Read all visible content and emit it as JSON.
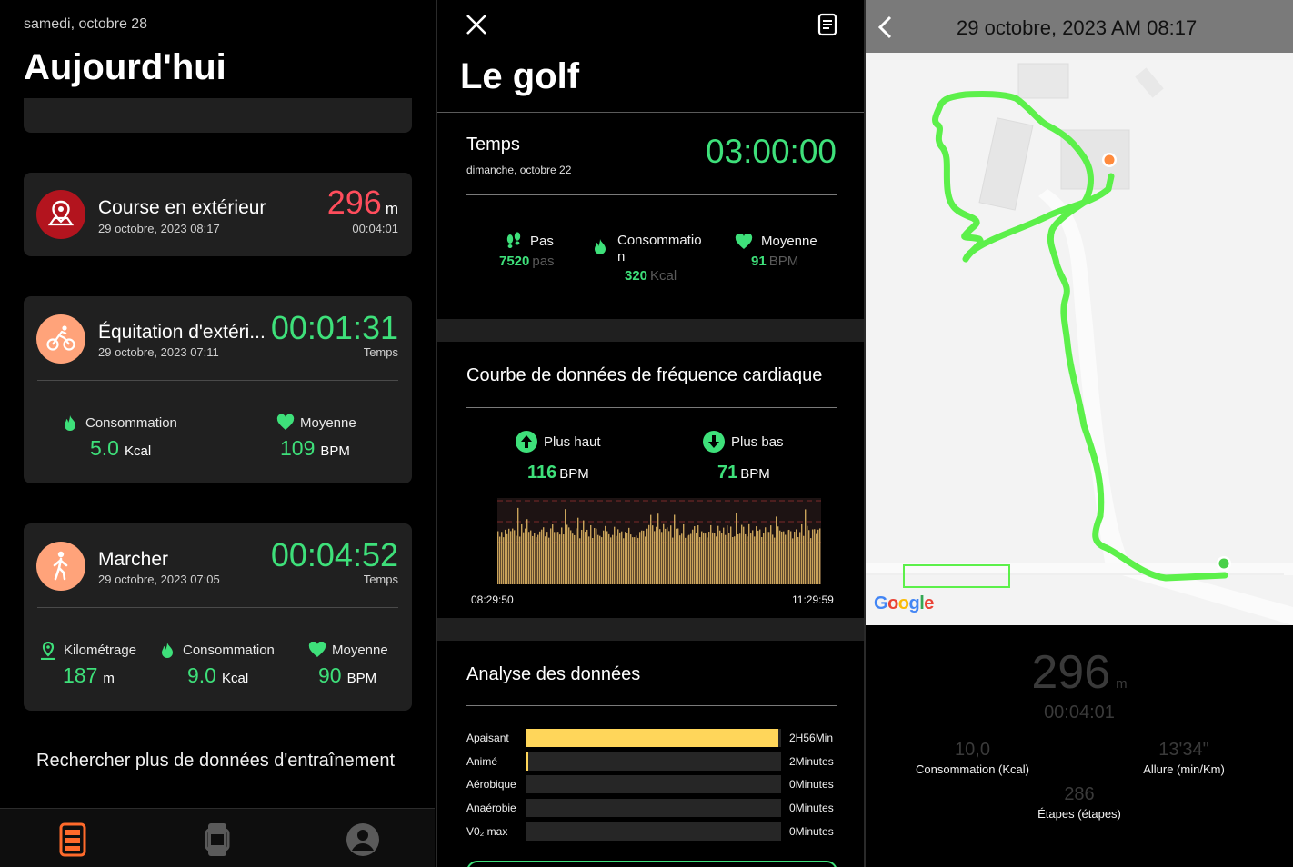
{
  "today": {
    "date": "samedi, octobre 28",
    "title": "Aujourd'hui",
    "cards": [
      {
        "name": "Course en extérieur",
        "date": "29 octobre, 2023 08:17",
        "value": "296",
        "unit": "m",
        "sub": "00:04:01",
        "icon": "map-pin-icon",
        "color": "#b3141e"
      },
      {
        "name": "Équitation d'extéri...",
        "date": "29 octobre, 2023 07:11",
        "value": "00:01:31",
        "sub": "Temps",
        "icon": "cycling-icon",
        "color": "#ffa37a",
        "stats": [
          {
            "label": "Consommation",
            "value": "5.0",
            "unit": "Kcal",
            "icon": "flame-icon"
          },
          {
            "label": "Moyenne",
            "value": "109",
            "unit": "BPM",
            "icon": "heart-icon"
          }
        ]
      },
      {
        "name": "Marcher",
        "date": "29 octobre, 2023 07:05",
        "value": "00:04:52",
        "sub": "Temps",
        "icon": "walking-icon",
        "color": "#ffa37a",
        "stats": [
          {
            "label": "Kilométrage",
            "value": "187",
            "unit": "m",
            "icon": "location-icon"
          },
          {
            "label": "Consommation",
            "value": "9.0",
            "unit": "Kcal",
            "icon": "flame-icon"
          },
          {
            "label": "Moyenne",
            "value": "90",
            "unit": "BPM",
            "icon": "heart-icon"
          }
        ]
      }
    ],
    "more_link": "Rechercher plus de données d'entraînement",
    "tabs": [
      "activity-tab-icon",
      "watch-tab-icon",
      "profile-tab-icon"
    ],
    "accent": "#ff6a2b"
  },
  "golf": {
    "title": "Le golf",
    "time_label": "Temps",
    "time_date": "dimanche, octobre 22",
    "time_value": "03:00:00",
    "metrics": {
      "steps_label": "Pas",
      "steps_value": "7520",
      "steps_unit": "pas",
      "cons_label_1": "Consommatio",
      "cons_label_2": "n",
      "cons_value": "320",
      "cons_unit": "Kcal",
      "avg_label": "Moyenne",
      "avg_value": "91",
      "avg_unit": "BPM"
    },
    "heart": {
      "title": "Courbe de données de fréquence cardiaque",
      "high_label": "Plus haut",
      "high_value": "116",
      "high_unit": "BPM",
      "low_label": "Plus bas",
      "low_value": "71",
      "low_unit": "BPM",
      "start_time": "08:29:50",
      "end_time": "11:29:59"
    },
    "analysis": {
      "title": "Analyse des données",
      "rows": [
        {
          "label": "Apaisant",
          "value": "2H56Min",
          "fraction": 0.99
        },
        {
          "label": "Animé",
          "value": "2Minutes",
          "fraction": 0.012
        },
        {
          "label": "Aérobique",
          "value": "0Minutes",
          "fraction": 0
        },
        {
          "label": "Anaérobie",
          "value": "0Minutes",
          "fraction": 0
        },
        {
          "label": "V0₂ max",
          "value": "0Minutes",
          "fraction": 0
        }
      ]
    }
  },
  "route": {
    "title": "29 octobre, 2023 AM 08:17",
    "distance": "296",
    "distance_unit": "m",
    "duration": "00:04:01",
    "consumption_value": "10,0",
    "consumption_label": "Consommation (Kcal)",
    "pace_value": "13'34\"",
    "pace_label": "Allure (min/Km)",
    "steps_value": "286",
    "steps_label": "Étapes (étapes)",
    "map_logo": "Google",
    "route_color": "#5cf04a"
  }
}
